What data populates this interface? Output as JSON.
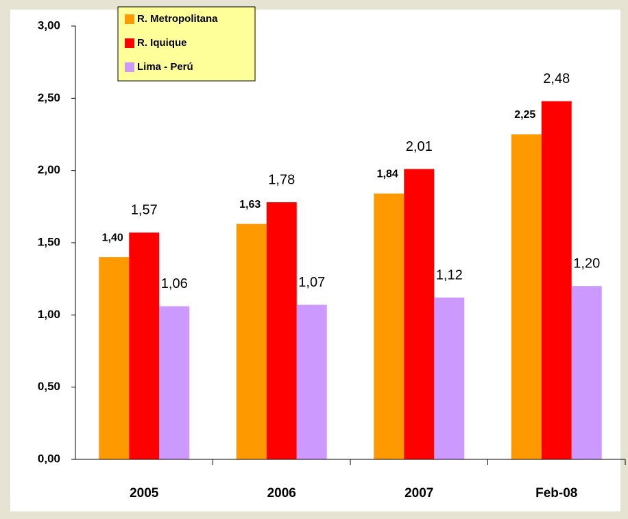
{
  "chart_data": {
    "type": "bar",
    "categories": [
      "2005",
      "2006",
      "2007",
      "Feb-08"
    ],
    "series": [
      {
        "name": "R. Metropolitana",
        "color": "#ff9900",
        "values": [
          1.4,
          1.63,
          1.84,
          2.25
        ],
        "value_labels": [
          "1,40",
          "1,63",
          "1,84",
          "2,25"
        ]
      },
      {
        "name": "R. Iquique",
        "color": "#ff0000",
        "values": [
          1.57,
          1.78,
          2.01,
          2.48
        ],
        "value_labels": [
          "1,57",
          "1,78",
          "2,01",
          "2,48"
        ]
      },
      {
        "name": "Lima - Perú",
        "color": "#cc99ff",
        "values": [
          1.06,
          1.07,
          1.12,
          1.2
        ],
        "value_labels": [
          "1,06",
          "1,07",
          "1,12",
          "1,20"
        ]
      }
    ],
    "ylim": [
      0,
      3
    ],
    "yticks": [
      {
        "value": 0,
        "label": "0,00"
      },
      {
        "value": 0.5,
        "label": "0,50"
      },
      {
        "value": 1,
        "label": "1,00"
      },
      {
        "value": 1.5,
        "label": "1,50"
      },
      {
        "value": 2,
        "label": "2,00"
      },
      {
        "value": 2.5,
        "label": "2,50"
      },
      {
        "value": 3,
        "label": "3,00"
      }
    ],
    "legend": "top-left"
  }
}
